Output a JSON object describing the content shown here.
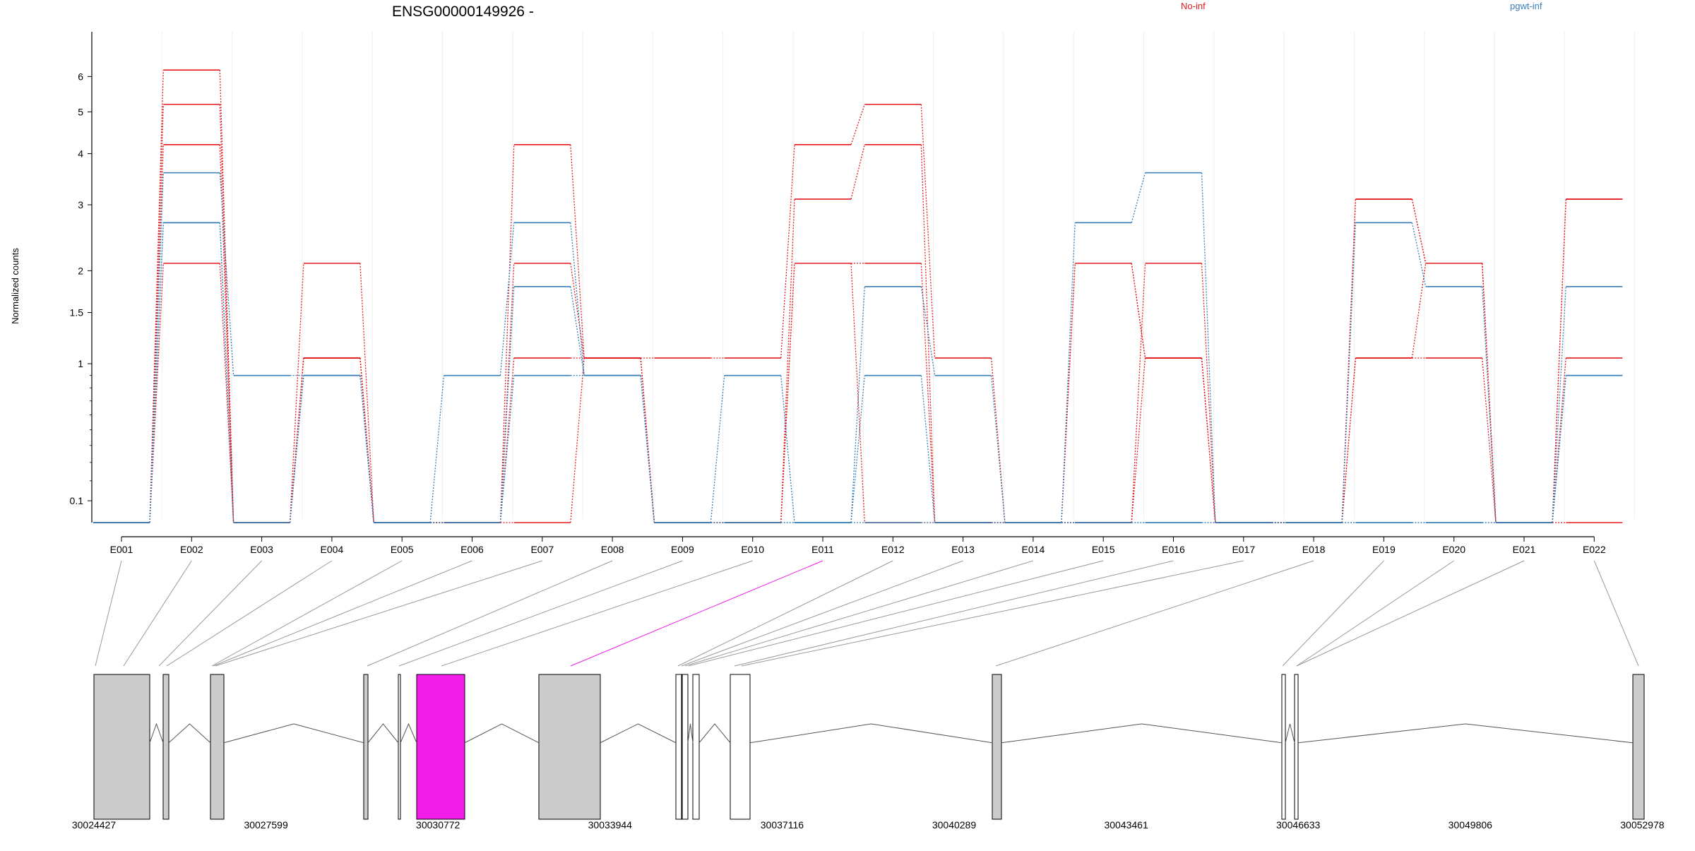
{
  "chart_data": {
    "type": "line",
    "title": "ENSG00000149926 -",
    "ylabel": "Normalized counts",
    "y_scale": "log1p",
    "y_ticks": [
      {
        "value": 0.1,
        "label": "0.1"
      },
      {
        "value": 1,
        "label": "1"
      },
      {
        "value": 1.5,
        "label": "1.5"
      },
      {
        "value": 2,
        "label": "2"
      },
      {
        "value": 3,
        "label": "3"
      },
      {
        "value": 4,
        "label": "4"
      },
      {
        "value": 5,
        "label": "5"
      },
      {
        "value": 6,
        "label": "6"
      }
    ],
    "y_minor_ticks": [
      0.2,
      0.3,
      0.4,
      0.5,
      0.6,
      0.7,
      0.8,
      0.9
    ],
    "categories": [
      "E001",
      "E002",
      "E003",
      "E004",
      "E005",
      "E006",
      "E007",
      "E008",
      "E009",
      "E010",
      "E011",
      "E012",
      "E013",
      "E014",
      "E015",
      "E016",
      "E017",
      "E018",
      "E019",
      "E020",
      "E021",
      "E022"
    ],
    "legend": [
      {
        "name": "No-inf",
        "color": "#e41a1c"
      },
      {
        "name": "pgwt-inf",
        "color": "#377eb8"
      }
    ],
    "series": [
      {
        "group": "No-inf",
        "values": [
          0,
          6.2,
          0,
          2.1,
          0,
          0,
          4.2,
          1.05,
          1.05,
          1.05,
          4.2,
          5.2,
          1.05,
          0,
          2.1,
          1.05,
          0,
          0,
          3.1,
          2.1,
          0,
          3.1
        ]
      },
      {
        "group": "No-inf",
        "values": [
          0,
          5.2,
          0,
          1.05,
          0,
          0,
          2.1,
          1.05,
          0,
          0,
          3.1,
          4.2,
          0,
          0,
          2.1,
          1.05,
          0,
          0,
          1.05,
          1.05,
          0,
          1.05
        ]
      },
      {
        "group": "No-inf",
        "values": [
          0,
          4.2,
          0,
          1.05,
          0,
          0,
          1.05,
          1.05,
          0,
          0,
          2.1,
          2.1,
          0,
          0,
          0,
          2.1,
          0,
          0,
          3.1,
          2.1,
          0,
          3.1
        ]
      },
      {
        "group": "No-inf",
        "values": [
          0,
          2.1,
          0,
          1.05,
          0,
          0,
          0,
          1.05,
          0,
          0,
          2.1,
          0,
          0,
          0,
          0,
          1.05,
          0,
          0,
          1.05,
          2.1,
          0,
          0
        ]
      },
      {
        "group": "pgwt-inf",
        "values": [
          0,
          3.6,
          0.9,
          0.9,
          0,
          0.9,
          2.7,
          0.9,
          0,
          0.9,
          0,
          1.8,
          0.9,
          0,
          2.7,
          3.6,
          0,
          0,
          2.7,
          1.8,
          0,
          1.8
        ]
      },
      {
        "group": "pgwt-inf",
        "values": [
          0,
          2.7,
          0,
          0.9,
          0,
          0,
          1.8,
          0.9,
          0,
          0,
          0,
          0.9,
          0,
          0,
          0,
          0,
          0,
          0,
          0,
          0,
          0,
          0.9
        ]
      },
      {
        "group": "pgwt-inf",
        "values": [
          0,
          2.7,
          0,
          0.9,
          0,
          0,
          0.9,
          0.9,
          0,
          0,
          0,
          0,
          0,
          0,
          0,
          0,
          0,
          0,
          0,
          0,
          0,
          0.9
        ]
      }
    ],
    "gene_model": {
      "coordinate_labels": [
        "30024427",
        "30027599",
        "30030772",
        "30033944",
        "30037116",
        "30040289",
        "30043461",
        "30046633",
        "30049806",
        "30052978"
      ],
      "highlighted_exon": "E011",
      "highlight_color": "#f21ee8",
      "exon_fill": "#cccccc",
      "unfilled_exon_fill": "#ffffff"
    },
    "grid": "vertical-light",
    "legend_position": "top-right"
  }
}
